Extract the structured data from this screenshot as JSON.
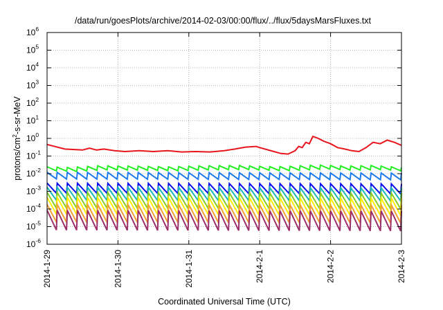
{
  "chart_data": {
    "type": "line",
    "title": "/data/run/goesPlots/archive/2014-02-03/00:00/flux/../flux/5daysMarsFluxes.txt",
    "xlabel": "Coordinated Universal Time (UTC)",
    "ylabel_parts": [
      "protons/cm",
      "2",
      "-s-sr-MeV"
    ],
    "yscale": "log",
    "ylim": [
      1e-06,
      1000000.0
    ],
    "xlim": [
      0,
      5
    ],
    "grid": true,
    "legend": "none",
    "x_ticks": [
      "2014-1-29",
      "2014-1-30",
      "2014-1-31",
      "2014-2-1",
      "2014-2-2",
      "2014-2-3"
    ],
    "y_ticks": [
      {
        "base": "10",
        "exp": "-6"
      },
      {
        "base": "10",
        "exp": "-5"
      },
      {
        "base": "10",
        "exp": "-4"
      },
      {
        "base": "10",
        "exp": "-3"
      },
      {
        "base": "10",
        "exp": "-2"
      },
      {
        "base": "10",
        "exp": "-1"
      },
      {
        "base": "10",
        "exp": "0"
      },
      {
        "base": "10",
        "exp": "1"
      },
      {
        "base": "10",
        "exp": "2"
      },
      {
        "base": "10",
        "exp": "3"
      },
      {
        "base": "10",
        "exp": "4"
      },
      {
        "base": "10",
        "exp": "5"
      },
      {
        "base": "10",
        "exp": "6"
      }
    ],
    "series": [
      {
        "color": "#e8141c",
        "x": [
          0,
          0.25,
          0.5,
          0.6,
          0.7,
          0.8,
          0.95,
          1.1,
          1.3,
          1.5,
          1.7,
          1.9,
          2.1,
          2.3,
          2.5,
          2.65,
          2.8,
          2.95,
          3.0,
          3.2,
          3.3,
          3.4,
          3.5,
          3.55,
          3.6,
          3.65,
          3.7,
          3.75,
          3.8,
          3.85,
          3.9,
          4.0,
          4.1,
          4.2,
          4.3,
          4.4,
          4.5,
          4.6,
          4.7,
          4.8,
          4.9,
          5.0
        ],
        "y": [
          0.45,
          0.25,
          0.22,
          0.28,
          0.22,
          0.25,
          0.2,
          0.18,
          0.2,
          0.18,
          0.2,
          0.17,
          0.18,
          0.17,
          0.2,
          0.25,
          0.32,
          0.35,
          0.3,
          0.18,
          0.14,
          0.13,
          0.2,
          0.35,
          0.3,
          0.6,
          0.5,
          1.3,
          1.1,
          0.9,
          0.7,
          0.5,
          0.3,
          0.25,
          0.2,
          0.18,
          0.3,
          0.6,
          0.5,
          0.8,
          0.6,
          0.4
        ]
      },
      {
        "color": "#22ee22",
        "x": [
          0,
          0.3,
          0.7,
          1.2,
          1.7,
          2.2,
          2.7,
          3.2,
          3.5,
          3.8,
          4.2,
          4.6,
          5.0
        ],
        "y": [
          0.022,
          0.02,
          0.025,
          0.024,
          0.022,
          0.025,
          0.026,
          0.022,
          0.024,
          0.028,
          0.024,
          0.026,
          0.02
        ]
      },
      {
        "color": "#1a7aee",
        "x": [
          0,
          5
        ],
        "y": [
          0.01,
          0.009
        ]
      },
      {
        "color": "#0a0aee",
        "x": [
          0,
          5
        ],
        "y": [
          0.0022,
          0.002
        ]
      },
      {
        "color": "#18b8b8",
        "x": [
          0,
          5
        ],
        "y": [
          0.0011,
          0.001
        ]
      },
      {
        "color": "#88cc22",
        "x": [
          0,
          5
        ],
        "y": [
          0.0005,
          0.00045
        ]
      },
      {
        "color": "#ffee00",
        "x": [
          0,
          5
        ],
        "y": [
          0.00025,
          0.00022
        ]
      },
      {
        "color": "#f0a030",
        "x": [
          0,
          5
        ],
        "y": [
          0.0001,
          9e-05
        ]
      },
      {
        "color": "#9c2f6a",
        "x": [
          0,
          5
        ],
        "y": [
          4.5e-05,
          4e-05
        ]
      }
    ]
  }
}
